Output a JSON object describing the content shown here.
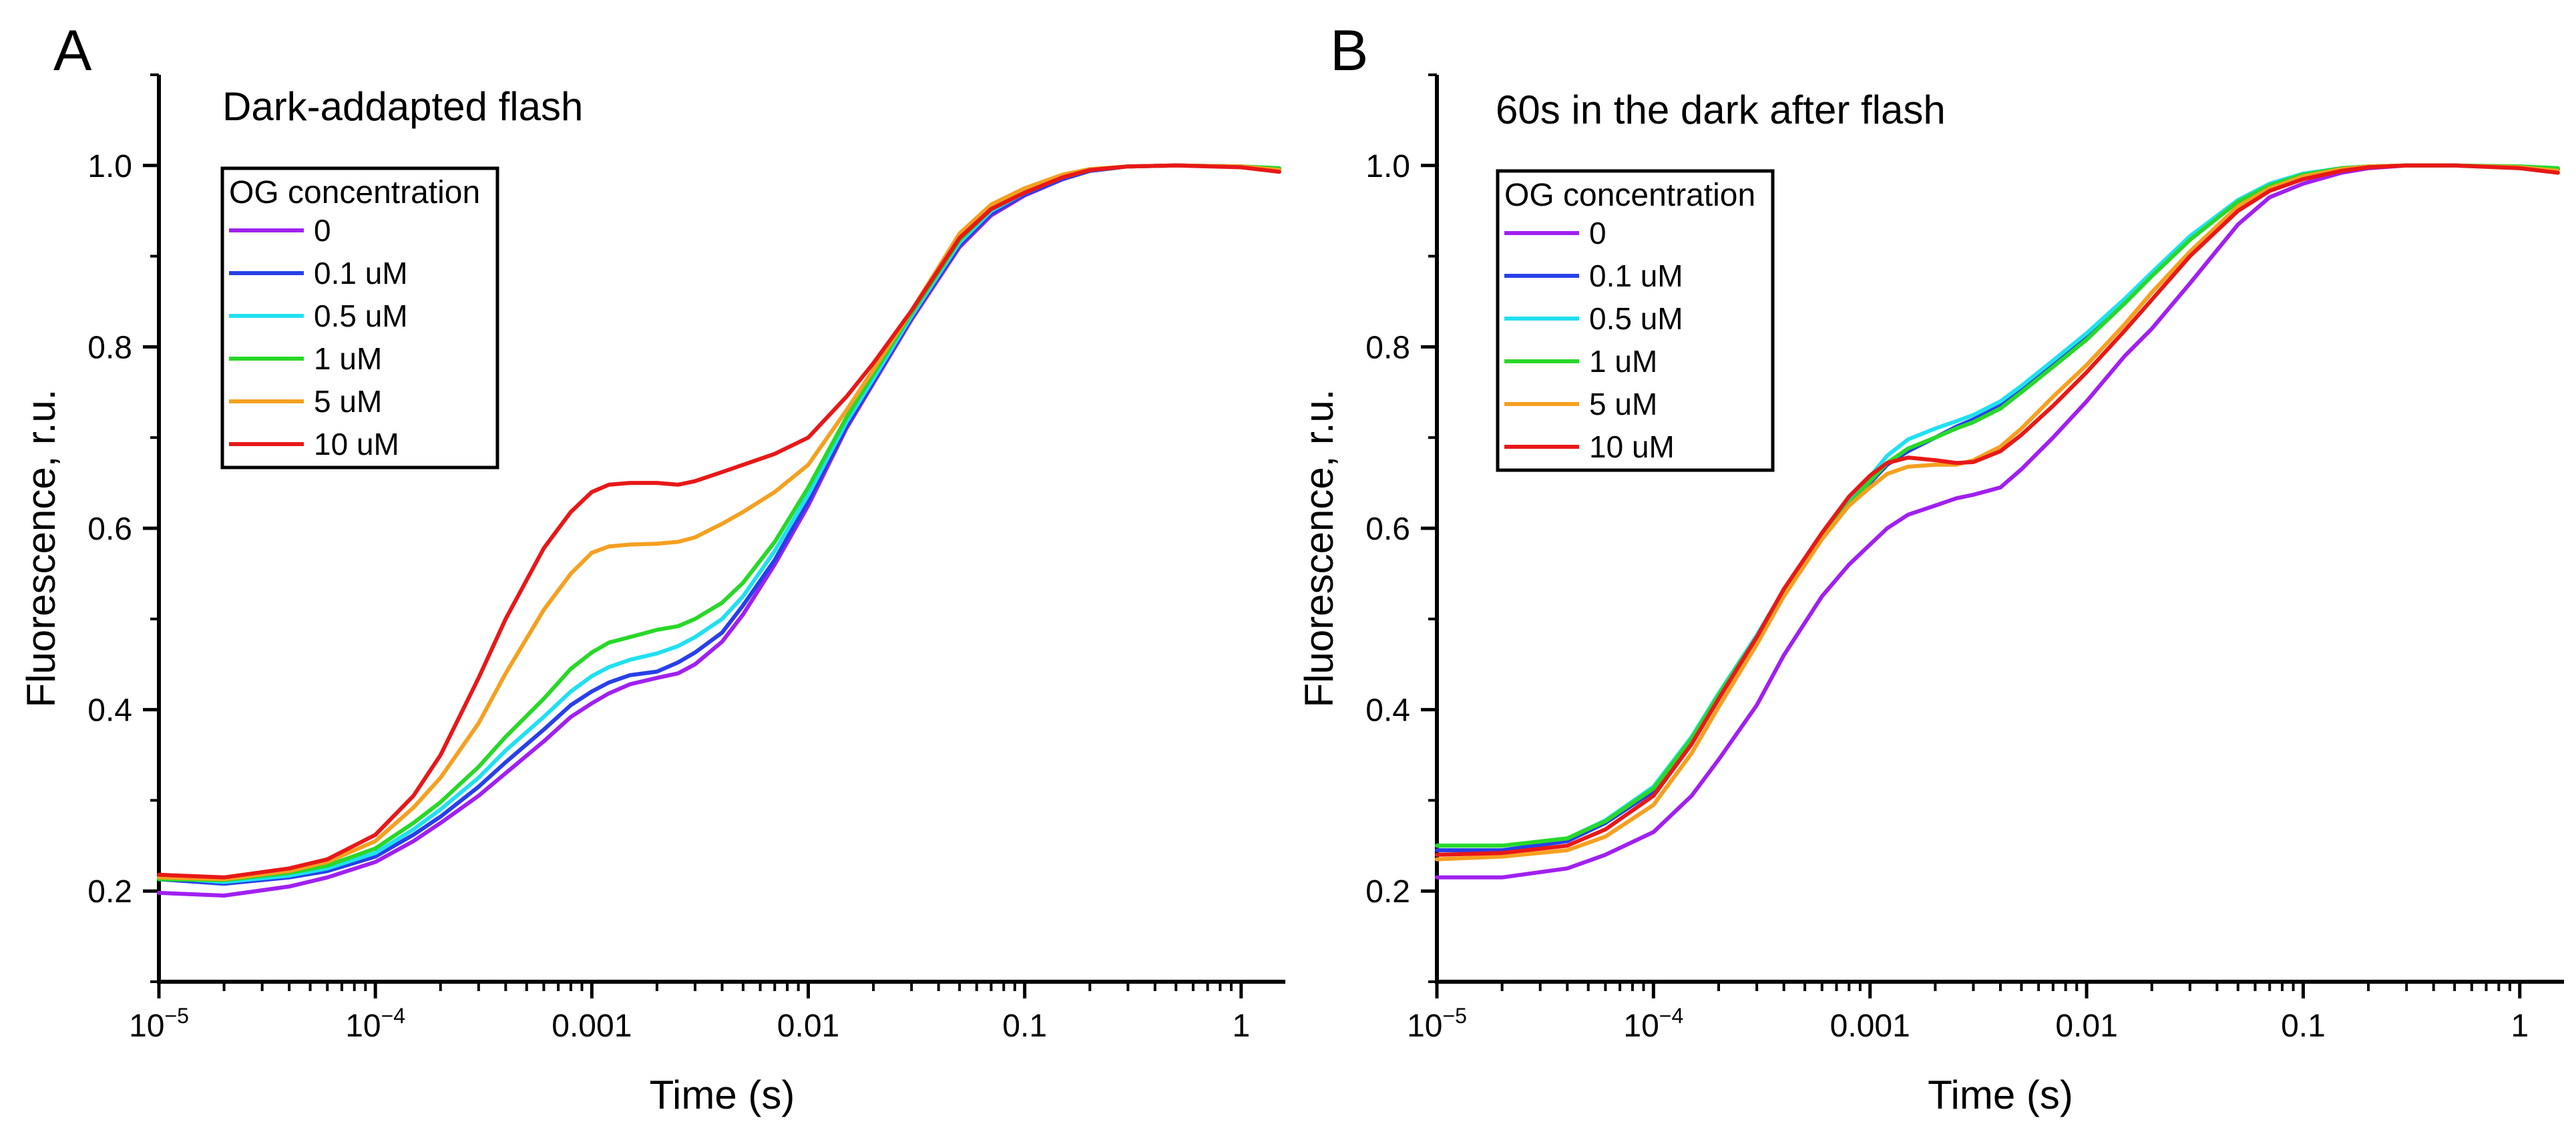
{
  "chart_data": [
    {
      "type": "line",
      "panel_letter": "A",
      "title": "Dark-addapted flash",
      "xlabel": "Time (s)",
      "ylabel": "Fluorescence, r.u.",
      "xscale": "log",
      "xlim": [
        1e-05,
        1.6
      ],
      "ylim": [
        0.1,
        1.1
      ],
      "x_ticks": [
        {
          "value": 1e-05,
          "base": "10",
          "exp": "−5"
        },
        {
          "value": 0.0001,
          "base": "10",
          "exp": "−4"
        },
        {
          "value": 0.001,
          "label": "0.001"
        },
        {
          "value": 0.01,
          "label": "0.01"
        },
        {
          "value": 0.1,
          "label": "0.1"
        },
        {
          "value": 1,
          "label": "1"
        }
      ],
      "y_ticks": [
        {
          "value": 0.2,
          "label": "0.2"
        },
        {
          "value": 0.4,
          "label": "0.4"
        },
        {
          "value": 0.6,
          "label": "0.6"
        },
        {
          "value": 0.8,
          "label": "0.8"
        },
        {
          "value": 1.0,
          "label": "1.0"
        }
      ],
      "grid": false,
      "legend": {
        "title": "OG concentration",
        "placement": "top-left"
      },
      "x": [
        1e-05,
        2e-05,
        4e-05,
        6e-05,
        0.0001,
        0.00015,
        0.0002,
        0.0003,
        0.0004,
        0.0006,
        0.0008,
        0.001,
        0.0012,
        0.0015,
        0.002,
        0.0025,
        0.003,
        0.004,
        0.005,
        0.007,
        0.01,
        0.015,
        0.02,
        0.03,
        0.05,
        0.07,
        0.1,
        0.15,
        0.2,
        0.3,
        0.5,
        1,
        1.5
      ],
      "series": [
        {
          "name": "0",
          "color": "#a020f0",
          "values": [
            0.198,
            0.195,
            0.205,
            0.215,
            0.232,
            0.255,
            0.275,
            0.305,
            0.33,
            0.365,
            0.392,
            0.407,
            0.418,
            0.428,
            0.435,
            0.44,
            0.45,
            0.475,
            0.505,
            0.56,
            0.625,
            0.71,
            0.76,
            0.83,
            0.91,
            0.945,
            0.967,
            0.985,
            0.994,
            0.999,
            1.0,
            0.999,
            0.996
          ]
        },
        {
          "name": "0.1 uM",
          "color": "#2840e8",
          "values": [
            0.213,
            0.208,
            0.215,
            0.222,
            0.238,
            0.262,
            0.282,
            0.315,
            0.342,
            0.378,
            0.405,
            0.42,
            0.43,
            0.438,
            0.442,
            0.452,
            0.463,
            0.485,
            0.515,
            0.565,
            0.63,
            0.712,
            0.762,
            0.832,
            0.912,
            0.947,
            0.968,
            0.985,
            0.994,
            0.999,
            1.0,
            0.999,
            0.996
          ]
        },
        {
          "name": "0.5 uM",
          "color": "#20e0f0",
          "values": [
            0.215,
            0.21,
            0.217,
            0.225,
            0.242,
            0.268,
            0.29,
            0.325,
            0.355,
            0.392,
            0.42,
            0.437,
            0.447,
            0.455,
            0.462,
            0.47,
            0.48,
            0.5,
            0.525,
            0.575,
            0.637,
            0.717,
            0.765,
            0.834,
            0.915,
            0.95,
            0.97,
            0.987,
            0.995,
            0.999,
            1.0,
            0.999,
            0.997
          ]
        },
        {
          "name": "1 uM",
          "color": "#28d828",
          "values": [
            0.213,
            0.212,
            0.22,
            0.228,
            0.247,
            0.275,
            0.298,
            0.337,
            0.37,
            0.412,
            0.445,
            0.463,
            0.474,
            0.48,
            0.488,
            0.492,
            0.5,
            0.518,
            0.54,
            0.585,
            0.645,
            0.722,
            0.77,
            0.837,
            0.918,
            0.952,
            0.972,
            0.988,
            0.995,
            0.999,
            1.0,
            0.999,
            0.997
          ]
        },
        {
          "name": "5 uM",
          "color": "#f5a020",
          "values": [
            0.215,
            0.213,
            0.222,
            0.232,
            0.255,
            0.292,
            0.325,
            0.385,
            0.44,
            0.51,
            0.55,
            0.573,
            0.58,
            0.582,
            0.583,
            0.585,
            0.59,
            0.605,
            0.618,
            0.64,
            0.67,
            0.73,
            0.775,
            0.84,
            0.925,
            0.957,
            0.975,
            0.99,
            0.996,
            0.999,
            1.0,
            0.999,
            0.995
          ]
        },
        {
          "name": "10 uM",
          "color": "#e81818",
          "values": [
            0.218,
            0.215,
            0.225,
            0.235,
            0.262,
            0.305,
            0.35,
            0.435,
            0.5,
            0.578,
            0.618,
            0.64,
            0.648,
            0.65,
            0.65,
            0.648,
            0.652,
            0.662,
            0.67,
            0.682,
            0.7,
            0.745,
            0.782,
            0.84,
            0.92,
            0.952,
            0.97,
            0.987,
            0.995,
            0.999,
            1.0,
            0.998,
            0.993
          ]
        }
      ]
    },
    {
      "type": "line",
      "panel_letter": "B",
      "title": "60s in the dark after flash",
      "xlabel": "Time (s)",
      "ylabel": "Fluorescence, r.u.",
      "xscale": "log",
      "xlim": [
        1e-05,
        1.6
      ],
      "ylim": [
        0.1,
        1.1
      ],
      "x_ticks": [
        {
          "value": 1e-05,
          "base": "10",
          "exp": "−5"
        },
        {
          "value": 0.0001,
          "base": "10",
          "exp": "−4"
        },
        {
          "value": 0.001,
          "label": "0.001"
        },
        {
          "value": 0.01,
          "label": "0.01"
        },
        {
          "value": 0.1,
          "label": "0.1"
        },
        {
          "value": 1,
          "label": "1"
        }
      ],
      "y_ticks": [
        {
          "value": 0.2,
          "label": "0.2"
        },
        {
          "value": 0.4,
          "label": "0.4"
        },
        {
          "value": 0.6,
          "label": "0.6"
        },
        {
          "value": 0.8,
          "label": "0.8"
        },
        {
          "value": 1.0,
          "label": "1.0"
        }
      ],
      "grid": false,
      "legend": {
        "title": "OG concentration",
        "placement": "top-left"
      },
      "x": [
        1e-05,
        2e-05,
        4e-05,
        6e-05,
        0.0001,
        0.00015,
        0.0002,
        0.0003,
        0.0004,
        0.0006,
        0.0008,
        0.001,
        0.0012,
        0.0015,
        0.002,
        0.0025,
        0.003,
        0.004,
        0.005,
        0.007,
        0.01,
        0.015,
        0.02,
        0.03,
        0.05,
        0.07,
        0.1,
        0.15,
        0.2,
        0.3,
        0.5,
        1,
        1.5
      ],
      "series": [
        {
          "name": "0",
          "color": "#a020f0",
          "values": [
            0.215,
            0.215,
            0.225,
            0.24,
            0.265,
            0.305,
            0.345,
            0.405,
            0.46,
            0.525,
            0.56,
            0.582,
            0.6,
            0.615,
            0.625,
            0.633,
            0.637,
            0.645,
            0.665,
            0.7,
            0.74,
            0.79,
            0.82,
            0.87,
            0.935,
            0.965,
            0.98,
            0.992,
            0.997,
            1.0,
            1.0,
            0.998,
            0.995
          ]
        },
        {
          "name": "0.1 uM",
          "color": "#2840e8",
          "values": [
            0.245,
            0.245,
            0.255,
            0.275,
            0.31,
            0.365,
            0.415,
            0.48,
            0.53,
            0.59,
            0.625,
            0.65,
            0.67,
            0.685,
            0.7,
            0.712,
            0.72,
            0.735,
            0.752,
            0.78,
            0.81,
            0.85,
            0.88,
            0.92,
            0.96,
            0.978,
            0.99,
            0.997,
            0.999,
            1.0,
            1.0,
            0.998,
            0.996
          ]
        },
        {
          "name": "0.5 uM",
          "color": "#20e0f0",
          "values": [
            0.25,
            0.25,
            0.258,
            0.278,
            0.315,
            0.37,
            0.418,
            0.482,
            0.532,
            0.593,
            0.63,
            0.657,
            0.68,
            0.698,
            0.71,
            0.718,
            0.725,
            0.74,
            0.757,
            0.785,
            0.815,
            0.853,
            0.882,
            0.922,
            0.962,
            0.98,
            0.991,
            0.997,
            0.999,
            1.0,
            1.0,
            0.999,
            0.997
          ]
        },
        {
          "name": "1 uM",
          "color": "#28d828",
          "values": [
            0.25,
            0.25,
            0.258,
            0.277,
            0.313,
            0.368,
            0.416,
            0.48,
            0.53,
            0.59,
            0.627,
            0.652,
            0.672,
            0.688,
            0.7,
            0.71,
            0.717,
            0.732,
            0.75,
            0.778,
            0.808,
            0.848,
            0.878,
            0.918,
            0.96,
            0.978,
            0.99,
            0.997,
            0.999,
            1.0,
            1.0,
            0.999,
            0.997
          ]
        },
        {
          "name": "5 uM",
          "color": "#f5a020",
          "values": [
            0.235,
            0.238,
            0.245,
            0.26,
            0.295,
            0.352,
            0.403,
            0.472,
            0.525,
            0.588,
            0.625,
            0.645,
            0.66,
            0.668,
            0.67,
            0.67,
            0.675,
            0.69,
            0.71,
            0.745,
            0.78,
            0.825,
            0.86,
            0.905,
            0.955,
            0.975,
            0.988,
            0.996,
            0.999,
            1.0,
            1.0,
            0.998,
            0.994
          ]
        },
        {
          "name": "10 uM",
          "color": "#e81818",
          "values": [
            0.24,
            0.242,
            0.25,
            0.268,
            0.305,
            0.362,
            0.412,
            0.48,
            0.533,
            0.595,
            0.635,
            0.658,
            0.672,
            0.678,
            0.675,
            0.672,
            0.673,
            0.685,
            0.703,
            0.735,
            0.772,
            0.818,
            0.852,
            0.9,
            0.95,
            0.972,
            0.985,
            0.994,
            0.998,
            1.0,
            1.0,
            0.997,
            0.992
          ]
        }
      ]
    }
  ]
}
